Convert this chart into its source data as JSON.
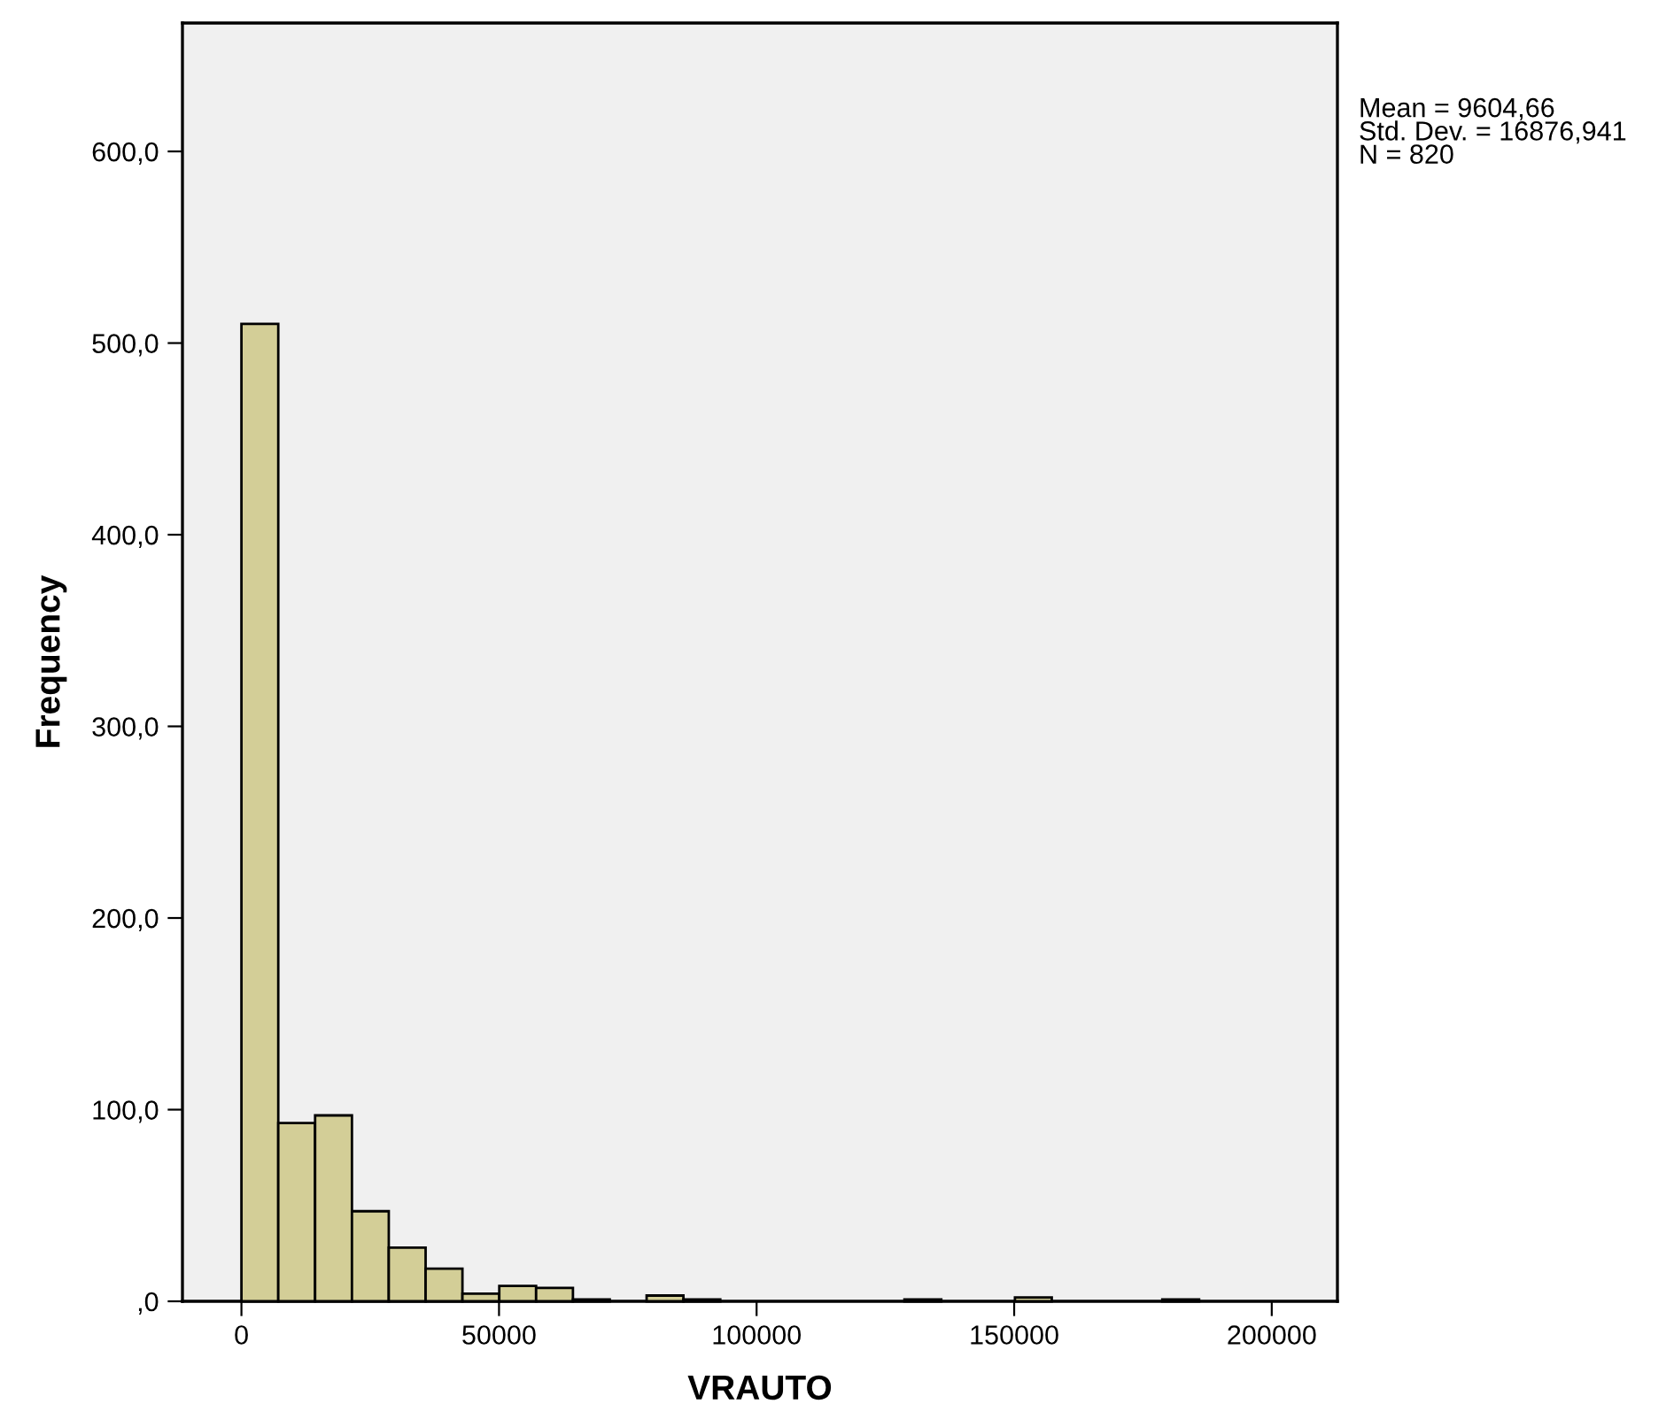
{
  "chart_data": {
    "type": "histogram",
    "xlabel": "VRAUTO",
    "ylabel": "Frequency",
    "bins": [
      0,
      7150,
      14300,
      21450,
      28600,
      35750,
      42900,
      50050,
      57200,
      64350,
      71500,
      78650,
      85800,
      92950,
      100100,
      107250,
      114400,
      121550,
      128700,
      135850,
      143000,
      150150,
      157300,
      164450,
      171600,
      178750,
      185900
    ],
    "values": [
      510,
      93,
      97,
      47,
      28,
      17,
      4,
      8,
      7,
      1,
      0,
      3,
      1,
      0,
      0,
      0,
      0,
      0,
      1,
      0,
      0,
      2,
      0,
      0,
      0,
      1
    ],
    "color": "#d3ce97",
    "xlim": [
      -11450,
      212750
    ],
    "xticks": [
      0,
      50000,
      100000,
      150000,
      200000
    ],
    "ylim": [
      0,
      667
    ],
    "yticks": [
      {
        "value": 0,
        "label": ",0"
      },
      {
        "value": 100,
        "label": "100,0"
      },
      {
        "value": 200,
        "label": "200,0"
      },
      {
        "value": 300,
        "label": "300,0"
      },
      {
        "value": 400,
        "label": "400,0"
      },
      {
        "value": 500,
        "label": "500,0"
      },
      {
        "value": 600,
        "label": "600,0"
      }
    ],
    "annotations": [
      "Mean = 9604,66\nStd. Dev. = 16876,941\nN = 820"
    ]
  }
}
